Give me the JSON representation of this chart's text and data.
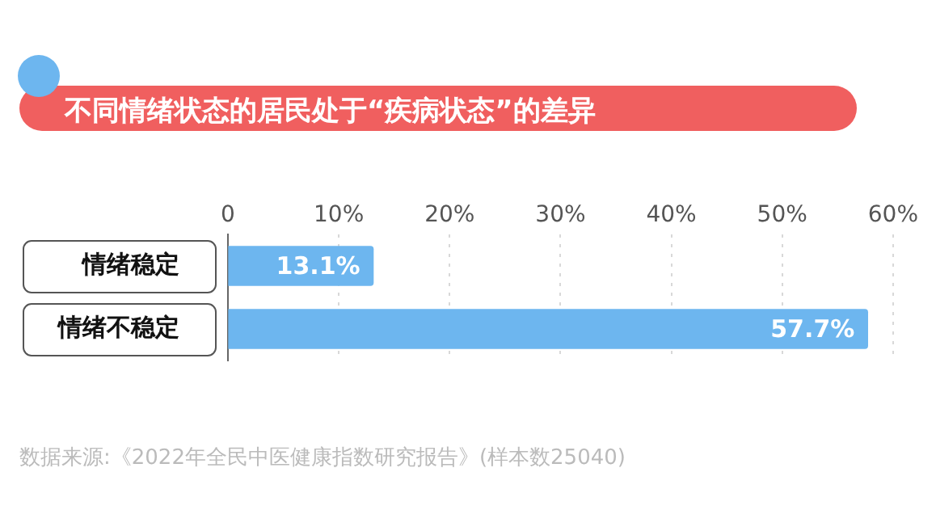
{
  "chart_data": {
    "type": "bar",
    "orientation": "horizontal",
    "title": "不同情绪状态的居民处于“疾病状态”的差异",
    "categories": [
      "情绪稳定",
      "情绪不稳定"
    ],
    "values": [
      13.1,
      57.7
    ],
    "color": "#6db6ef",
    "value_labels": [
      "13.1%",
      "57.7%"
    ],
    "xlim": [
      0,
      60
    ],
    "xticks": [
      {
        "value": 0,
        "label": "0"
      },
      {
        "value": 10,
        "label": "10%"
      },
      {
        "value": 20,
        "label": "20%"
      },
      {
        "value": 30,
        "label": "30%"
      },
      {
        "value": 40,
        "label": "40%"
      },
      {
        "value": 50,
        "label": "50%"
      },
      {
        "value": 60,
        "label": "60%"
      }
    ],
    "grid": "x",
    "annotations": [
      "数据来源:《2022年全民中医健康指数研究报告》(样本数25040)"
    ]
  }
}
